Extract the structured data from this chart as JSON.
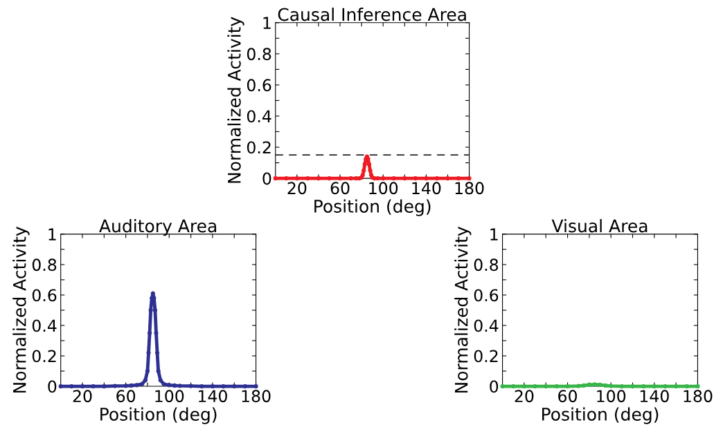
{
  "chart_data": [
    {
      "type": "line",
      "title": "Causal Inference Area",
      "xlabel": "Position (deg)",
      "ylabel": "Normalized Activity",
      "x": [
        0,
        10,
        20,
        30,
        40,
        50,
        60,
        70,
        75,
        78,
        80,
        81,
        82,
        83,
        84,
        85,
        86,
        87,
        88,
        89,
        90,
        92,
        95,
        100,
        110,
        120,
        130,
        140,
        150,
        160,
        170,
        180
      ],
      "series": [
        {
          "color": "#ed1c24",
          "values": [
            0,
            0,
            0,
            0,
            0,
            0,
            0,
            0,
            0,
            0,
            0.005,
            0.02,
            0.05,
            0.09,
            0.125,
            0.14,
            0.125,
            0.09,
            0.05,
            0.02,
            0.005,
            0,
            0,
            0,
            0,
            0,
            0,
            0,
            0,
            0,
            0,
            0
          ]
        }
      ],
      "xlim": [
        0,
        180
      ],
      "ylim": [
        0,
        1
      ],
      "xticks": [
        20,
        {
          "value": 40,
          "label": null
        },
        60,
        {
          "value": 80,
          "label": null
        },
        100,
        {
          "value": 120,
          "label": null
        },
        140,
        {
          "value": 160,
          "label": null
        },
        180
      ],
      "yticks": [
        0,
        {
          "value": 0.1,
          "label": null
        },
        0.2,
        {
          "value": 0.3,
          "label": null
        },
        0.4,
        {
          "value": 0.5,
          "label": null
        },
        0.6,
        {
          "value": 0.7,
          "label": null
        },
        0.8,
        {
          "value": 0.9,
          "label": null
        },
        1
      ],
      "ref_lines": [
        {
          "axis": "y",
          "value": 0.15,
          "color": "#000000",
          "line_style": "dashed"
        }
      ],
      "marker": "circle",
      "grid": false
    },
    {
      "type": "line",
      "title": "Auditory Area",
      "xlabel": "Position (deg)",
      "ylabel": "Normalized Activity",
      "x": [
        0,
        10,
        20,
        30,
        40,
        50,
        60,
        65,
        70,
        75,
        78,
        80,
        81,
        82,
        83,
        84,
        85,
        86,
        87,
        88,
        89,
        90,
        92,
        95,
        100,
        105,
        110,
        120,
        130,
        140,
        150,
        160,
        170,
        180
      ],
      "series": [
        {
          "color": "#2e3192",
          "values": [
            0,
            0,
            0,
            0,
            0,
            0.002,
            0.003,
            0.005,
            0.008,
            0.015,
            0.04,
            0.1,
            0.22,
            0.35,
            0.5,
            0.58,
            0.61,
            0.58,
            0.5,
            0.35,
            0.22,
            0.1,
            0.04,
            0.015,
            0.008,
            0.005,
            0.003,
            0.002,
            0,
            0,
            0,
            0,
            0,
            0
          ]
        }
      ],
      "xlim": [
        0,
        180
      ],
      "ylim": [
        0,
        1
      ],
      "xticks": [
        20,
        {
          "value": 40,
          "label": null
        },
        60,
        {
          "value": 80,
          "label": null
        },
        100,
        {
          "value": 120,
          "label": null
        },
        140,
        {
          "value": 160,
          "label": null
        },
        180
      ],
      "yticks": [
        0,
        {
          "value": 0.1,
          "label": null
        },
        0.2,
        {
          "value": 0.3,
          "label": null
        },
        0.4,
        {
          "value": 0.5,
          "label": null
        },
        0.6,
        {
          "value": 0.7,
          "label": null
        },
        0.8,
        {
          "value": 0.9,
          "label": null
        },
        1
      ],
      "marker": "circle",
      "grid": false
    },
    {
      "type": "line",
      "title": "Visual Area",
      "xlabel": "Position (deg)",
      "ylabel": "Normalized Activity",
      "x": [
        0,
        10,
        20,
        30,
        40,
        50,
        60,
        70,
        75,
        80,
        85,
        90,
        95,
        100,
        110,
        120,
        130,
        140,
        150,
        160,
        170,
        180
      ],
      "series": [
        {
          "color": "#39b54a",
          "values": [
            0,
            0,
            0,
            0,
            0,
            0,
            0,
            0.002,
            0.005,
            0.01,
            0.012,
            0.01,
            0.005,
            0.002,
            0,
            0,
            0,
            0,
            0,
            0,
            0,
            0
          ]
        }
      ],
      "xlim": [
        0,
        180
      ],
      "ylim": [
        0,
        1
      ],
      "xticks": [
        20,
        {
          "value": 40,
          "label": null
        },
        60,
        {
          "value": 80,
          "label": null
        },
        100,
        {
          "value": 120,
          "label": null
        },
        140,
        {
          "value": 160,
          "label": null
        },
        180
      ],
      "yticks": [
        0,
        {
          "value": 0.1,
          "label": null
        },
        0.2,
        {
          "value": 0.3,
          "label": null
        },
        0.4,
        {
          "value": 0.5,
          "label": null
        },
        0.6,
        {
          "value": 0.7,
          "label": null
        },
        0.8,
        {
          "value": 0.9,
          "label": null
        },
        1
      ],
      "marker": "circle",
      "grid": false
    }
  ]
}
